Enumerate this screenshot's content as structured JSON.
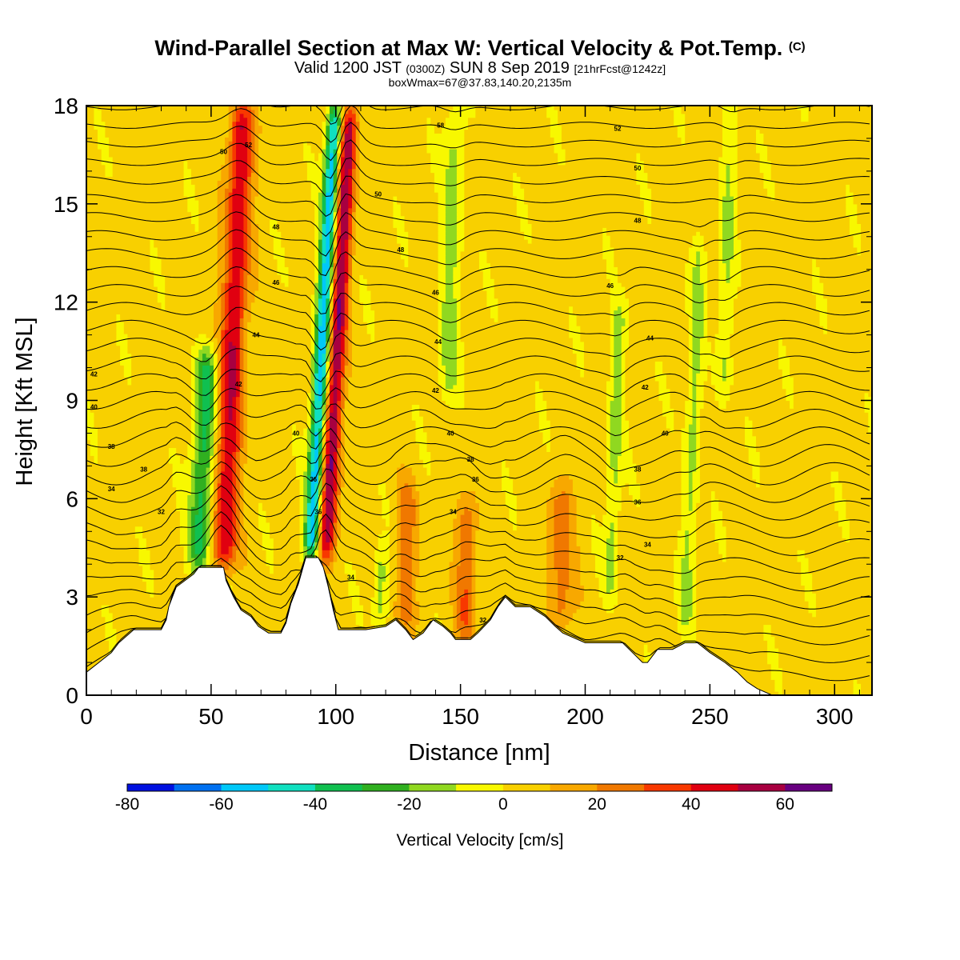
{
  "title": {
    "line1": "Wind-Parallel Section at Max W: Vertical Velocity & Pot.Temp.",
    "line1_tag": "(C)",
    "line2_a": "Valid 1200 JST",
    "line2_b": "(0300Z)",
    "line2_c": "SUN 8 Sep 2019",
    "line2_d": "[21hrFcst@1242z]",
    "line3": "boxWmax=67@37.83,140.20,2135m"
  },
  "chart_data": {
    "type": "heatmap",
    "xlabel": "Distance [nm]",
    "ylabel": "Height [Kft MSL]",
    "xlim": [
      0,
      315
    ],
    "ylim": [
      0,
      18
    ],
    "xticks": [
      0,
      50,
      100,
      150,
      200,
      250,
      300
    ],
    "yticks": [
      0,
      3,
      6,
      9,
      12,
      15,
      18
    ],
    "terrain": [
      [
        0,
        0.7
      ],
      [
        5,
        1.0
      ],
      [
        10,
        1.3
      ],
      [
        13,
        1.6
      ],
      [
        19,
        2.0
      ],
      [
        30,
        2.0
      ],
      [
        32,
        2.3
      ],
      [
        33,
        2.7
      ],
      [
        36,
        3.3
      ],
      [
        43,
        3.7
      ],
      [
        45,
        3.9
      ],
      [
        55,
        3.9
      ],
      [
        56,
        3.5
      ],
      [
        59,
        3.0
      ],
      [
        62,
        2.6
      ],
      [
        66,
        2.4
      ],
      [
        69,
        2.1
      ],
      [
        71,
        2.0
      ],
      [
        73,
        1.9
      ],
      [
        78,
        1.9
      ],
      [
        80,
        2.2
      ],
      [
        82,
        2.8
      ],
      [
        85,
        3.4
      ],
      [
        88,
        4.2
      ],
      [
        93,
        4.2
      ],
      [
        95,
        3.9
      ],
      [
        97,
        3.3
      ],
      [
        99,
        2.6
      ],
      [
        101,
        2.0
      ],
      [
        112,
        2.0
      ],
      [
        120,
        2.1
      ],
      [
        124,
        2.3
      ],
      [
        128,
        2.0
      ],
      [
        131,
        1.7
      ],
      [
        135,
        1.9
      ],
      [
        139,
        2.3
      ],
      [
        143,
        2.1
      ],
      [
        146,
        1.9
      ],
      [
        148,
        1.7
      ],
      [
        154,
        1.7
      ],
      [
        157,
        1.9
      ],
      [
        162,
        2.3
      ],
      [
        165,
        2.7
      ],
      [
        168,
        3.0
      ],
      [
        172,
        2.7
      ],
      [
        178,
        2.7
      ],
      [
        184,
        2.4
      ],
      [
        188,
        2.1
      ],
      [
        191,
        1.9
      ],
      [
        200,
        1.6
      ],
      [
        206,
        1.6
      ],
      [
        215,
        1.6
      ],
      [
        219,
        1.3
      ],
      [
        223,
        1.0
      ],
      [
        225,
        1.0
      ],
      [
        229,
        1.4
      ],
      [
        235,
        1.4
      ],
      [
        240,
        1.6
      ],
      [
        245,
        1.6
      ],
      [
        250,
        1.3
      ],
      [
        256,
        1.0
      ],
      [
        261,
        0.7
      ],
      [
        265,
        0.4
      ],
      [
        269,
        0.2
      ],
      [
        275,
        0.0
      ],
      [
        315,
        0.0
      ]
    ],
    "w_features": [
      {
        "x": 55,
        "z0": 3.9,
        "z1": 18,
        "lean": 0.55,
        "w": 5,
        "amp": 45
      },
      {
        "x": 45,
        "z0": 3.8,
        "z1": 10.5,
        "lean": 0.5,
        "w": 4.5,
        "amp": -38
      },
      {
        "x": 96,
        "z0": 4.2,
        "z1": 18,
        "lean": 0.7,
        "w": 3.5,
        "amp": 55
      },
      {
        "x": 90,
        "z0": 4.2,
        "z1": 18,
        "lean": 0.7,
        "w": 3.0,
        "amp": -62
      },
      {
        "x": 128,
        "z0": 1.9,
        "z1": 6.5,
        "lean": 0.1,
        "w": 4,
        "amp": 22
      },
      {
        "x": 152,
        "z0": 1.7,
        "z1": 6.0,
        "lean": 0.1,
        "w": 4,
        "amp": 25
      },
      {
        "x": 190,
        "z0": 2.0,
        "z1": 6.5,
        "lean": 0.15,
        "w": 5,
        "amp": 22
      },
      {
        "x": 118,
        "z0": 2.1,
        "z1": 4.5,
        "lean": 0.0,
        "w": 3,
        "amp": -20
      },
      {
        "x": 145,
        "z0": 9.0,
        "z1": 18,
        "lean": 0.3,
        "w": 4,
        "amp": -18
      },
      {
        "x": 210,
        "z0": 3.0,
        "z1": 12,
        "lean": 0.4,
        "w": 3,
        "amp": -18
      },
      {
        "x": 240,
        "z0": 2.0,
        "z1": 14,
        "lean": 0.5,
        "w": 3,
        "amp": -17
      },
      {
        "x": 255,
        "z0": 9.0,
        "z1": 18,
        "lean": 0.4,
        "w": 3,
        "amp": -15
      }
    ],
    "theta_labels": [
      {
        "text": "52",
        "x": 65,
        "y": 16.8
      },
      {
        "text": "50",
        "x": 55,
        "y": 16.6
      },
      {
        "text": "50",
        "x": 117,
        "y": 15.3
      },
      {
        "text": "58",
        "x": 142,
        "y": 17.4
      },
      {
        "text": "52",
        "x": 213,
        "y": 17.3
      },
      {
        "text": "50",
        "x": 221,
        "y": 16.1
      },
      {
        "text": "48",
        "x": 76,
        "y": 14.3
      },
      {
        "text": "48",
        "x": 126,
        "y": 13.6
      },
      {
        "text": "48",
        "x": 221,
        "y": 14.5
      },
      {
        "text": "46",
        "x": 76,
        "y": 12.6
      },
      {
        "text": "46",
        "x": 140,
        "y": 12.3
      },
      {
        "text": "46",
        "x": 210,
        "y": 12.5
      },
      {
        "text": "44",
        "x": 68,
        "y": 11.0
      },
      {
        "text": "44",
        "x": 141,
        "y": 10.8
      },
      {
        "text": "44",
        "x": 226,
        "y": 10.9
      },
      {
        "text": "42",
        "x": 3,
        "y": 9.8
      },
      {
        "text": "42",
        "x": 61,
        "y": 9.5
      },
      {
        "text": "42",
        "x": 140,
        "y": 9.3
      },
      {
        "text": "42",
        "x": 224,
        "y": 9.4
      },
      {
        "text": "40",
        "x": 3,
        "y": 8.8
      },
      {
        "text": "40",
        "x": 84,
        "y": 8.0
      },
      {
        "text": "40",
        "x": 146,
        "y": 8.0
      },
      {
        "text": "40",
        "x": 232,
        "y": 8.0
      },
      {
        "text": "38",
        "x": 10,
        "y": 7.6
      },
      {
        "text": "38",
        "x": 23,
        "y": 6.9
      },
      {
        "text": "38",
        "x": 154,
        "y": 7.2
      },
      {
        "text": "38",
        "x": 221,
        "y": 6.9
      },
      {
        "text": "36",
        "x": 91,
        "y": 6.6
      },
      {
        "text": "36",
        "x": 156,
        "y": 6.6
      },
      {
        "text": "36",
        "x": 221,
        "y": 5.9
      },
      {
        "text": "34",
        "x": 10,
        "y": 6.3
      },
      {
        "text": "34",
        "x": 147,
        "y": 5.6
      },
      {
        "text": "34",
        "x": 225,
        "y": 4.6
      },
      {
        "text": "32",
        "x": 30,
        "y": 5.6
      },
      {
        "text": "32",
        "x": 214,
        "y": 4.2
      },
      {
        "text": "36",
        "x": 93,
        "y": 5.6
      },
      {
        "text": "34",
        "x": 106,
        "y": 3.6
      },
      {
        "text": "32",
        "x": 159,
        "y": 2.3
      }
    ],
    "colorbar": {
      "label": "Vertical Velocity [cm/s]",
      "min": -80,
      "max": 70,
      "step": 10,
      "tick_values": [
        -80,
        -60,
        -40,
        -20,
        0,
        20,
        40,
        60
      ],
      "colors": [
        "#0010e0",
        "#0070f0",
        "#00c8f8",
        "#10e0c0",
        "#10c050",
        "#30b020",
        "#90d820",
        "#f8f800",
        "#f8d000",
        "#f8a800",
        "#f07800",
        "#f83800",
        "#e00010",
        "#a80040",
        "#680080"
      ]
    }
  }
}
